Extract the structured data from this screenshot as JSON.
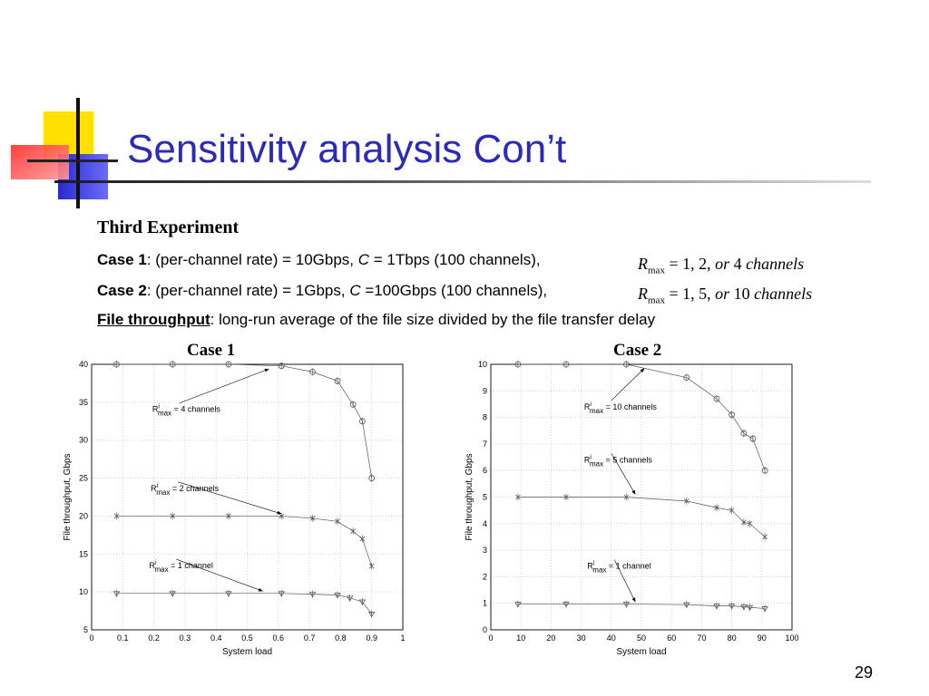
{
  "title": "Sensitivity analysis Con’t",
  "heading": "Third Experiment",
  "case1": {
    "label": "Case 1",
    "text_a": ": (per-channel rate) = 10Gbps, ",
    "var": "C",
    "text_b": " = 1Tbps (100 channels),",
    "formula_var": "R",
    "formula_sub": "max",
    "formula_rest": " = 1, 2, ",
    "formula_or": "or",
    "formula_vals": " 4 ",
    "formula_unit": "channels"
  },
  "case2": {
    "label": "Case 2",
    "text_a": ": (per-channel rate) = 1Gbps, ",
    "var": "C",
    "text_b": " =100Gbps (100 channels),",
    "formula_var": "R",
    "formula_sub": "max",
    "formula_rest": " = 1, 5, ",
    "formula_or": "or",
    "formula_vals": " 10 ",
    "formula_unit": "channels"
  },
  "file_throughput": {
    "term": "File throughput",
    "definition": ": long-run average of the file size divided by the file transfer delay"
  },
  "page_number": "29",
  "colors": {
    "title": "#2b2bb8",
    "series": "#555555",
    "grid": "#c8c8c8"
  },
  "chart_data": [
    {
      "type": "line",
      "title": "Case 1",
      "xlabel": "System load",
      "ylabel": "File throughput, Gbps",
      "xlim": [
        0,
        1
      ],
      "ylim": [
        5,
        40
      ],
      "xticks": [
        "0",
        "0.1",
        "0.2",
        "0.3",
        "0.4",
        "0.5",
        "0.6",
        "0.7",
        "0.8",
        "0.9",
        "1"
      ],
      "yticks": [
        "5",
        "10",
        "15",
        "20",
        "25",
        "30",
        "35",
        "40"
      ],
      "grid": true,
      "series": [
        {
          "marker": "circle",
          "x": [
            0.08,
            0.26,
            0.44,
            0.61,
            0.71,
            0.79,
            0.84,
            0.87,
            0.9
          ],
          "y": [
            40,
            40,
            40,
            39.8,
            39,
            37.8,
            34.7,
            32.5,
            25
          ]
        },
        {
          "marker": "x",
          "x": [
            0.08,
            0.26,
            0.44,
            0.61,
            0.71,
            0.79,
            0.84,
            0.87,
            0.9
          ],
          "y": [
            20,
            20,
            20,
            20,
            19.7,
            19.3,
            18,
            17,
            13.4
          ]
        },
        {
          "marker": "triangle",
          "x": [
            0.08,
            0.26,
            0.44,
            0.61,
            0.71,
            0.79,
            0.83,
            0.87,
            0.9
          ],
          "y": [
            9.8,
            9.8,
            9.8,
            9.8,
            9.7,
            9.6,
            9.2,
            8.7,
            7.1
          ]
        }
      ],
      "annotations": [
        {
          "label": "R",
          "sup": "i",
          "sub": "max",
          "text": " = 4 channels",
          "x": 0.195,
          "y": 33.7,
          "ax": 0.57,
          "ay": 39.4
        },
        {
          "label": "R",
          "sup": "i",
          "sub": "max",
          "text": " = 2 channels",
          "x": 0.19,
          "y": 23.3,
          "ax": 0.61,
          "ay": 20.3
        },
        {
          "label": "R",
          "sup": "i",
          "sub": "max",
          "text": " = 1 channel",
          "x": 0.185,
          "y": 13.1,
          "ax": 0.55,
          "ay": 10.1
        }
      ]
    },
    {
      "type": "line",
      "title": "Case 2",
      "xlabel": "System load",
      "ylabel": "File throughput, Gbps",
      "xlim": [
        0,
        100
      ],
      "ylim": [
        0,
        10
      ],
      "xticks": [
        "0",
        "10",
        "20",
        "30",
        "40",
        "50",
        "60",
        "70",
        "80",
        "90",
        "100"
      ],
      "yticks": [
        "0",
        "1",
        "2",
        "3",
        "4",
        "5",
        "6",
        "7",
        "8",
        "9",
        "10"
      ],
      "grid": true,
      "series": [
        {
          "marker": "circle",
          "x": [
            9,
            25,
            45,
            65,
            75,
            80,
            84,
            87,
            91
          ],
          "y": [
            10,
            10,
            10,
            9.5,
            8.7,
            8.1,
            7.4,
            7.2,
            6
          ]
        },
        {
          "marker": "x",
          "x": [
            9,
            25,
            45,
            65,
            75,
            80,
            84,
            86,
            91
          ],
          "y": [
            5,
            5,
            5,
            4.85,
            4.6,
            4.5,
            4.05,
            4,
            3.5
          ]
        },
        {
          "marker": "triangle",
          "x": [
            9,
            25,
            45,
            65,
            75,
            80,
            84,
            86,
            91
          ],
          "y": [
            0.97,
            0.97,
            0.97,
            0.95,
            0.9,
            0.9,
            0.87,
            0.85,
            0.8
          ]
        }
      ],
      "annotations": [
        {
          "label": "R",
          "sup": "i",
          "sub": "max",
          "text": " = 10 channels",
          "x": 31,
          "y": 8.3,
          "ax": 51,
          "ay": 9.85
        },
        {
          "label": "R",
          "sup": "i",
          "sub": "max",
          "text": " = 5 channels",
          "x": 31,
          "y": 6.3,
          "ax": 48,
          "ay": 5.1
        },
        {
          "label": "R",
          "sup": "i",
          "sub": "max",
          "text": " = 1 channel",
          "x": 32,
          "y": 2.3,
          "ax": 48,
          "ay": 1.05
        }
      ]
    }
  ]
}
